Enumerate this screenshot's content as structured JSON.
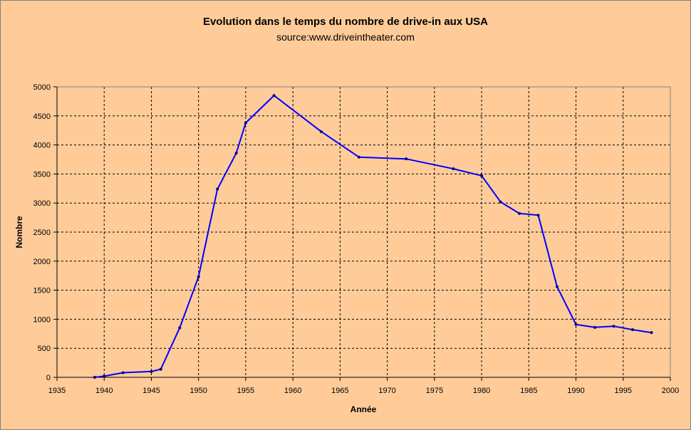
{
  "chart_data": {
    "type": "line",
    "title": "Evolution dans le temps du nombre de drive-in aux USA",
    "subtitle": "source:www.driveintheater.com",
    "xlabel": "Année",
    "ylabel": "Nombre",
    "xlim": [
      1935,
      2000
    ],
    "ylim": [
      0,
      5000
    ],
    "xticks": [
      1935,
      1940,
      1945,
      1950,
      1955,
      1960,
      1965,
      1970,
      1975,
      1980,
      1985,
      1990,
      1995,
      2000
    ],
    "yticks": [
      0,
      500,
      1000,
      1500,
      2000,
      2500,
      3000,
      3500,
      4000,
      4500,
      5000
    ],
    "grid": true,
    "legend": "none",
    "series": [
      {
        "color": "#0000FF",
        "x": [
          1939,
          1940,
          1942,
          1945,
          1946,
          1948,
          1950,
          1952,
          1954,
          1955,
          1958,
          1963,
          1967,
          1972,
          1977,
          1980,
          1982,
          1984,
          1986,
          1988,
          1990,
          1992,
          1994,
          1996,
          1998
        ],
        "y": [
          0,
          20,
          80,
          100,
          140,
          850,
          1730,
          3240,
          3860,
          4380,
          4850,
          4230,
          3790,
          3760,
          3590,
          3470,
          3020,
          2820,
          2790,
          1560,
          910,
          860,
          880,
          820,
          770
        ]
      }
    ],
    "colors": {
      "chart_background": "#FFCC99",
      "plot_background": "#FFCC99",
      "grid": "#000000",
      "line": "#0000FF"
    }
  }
}
